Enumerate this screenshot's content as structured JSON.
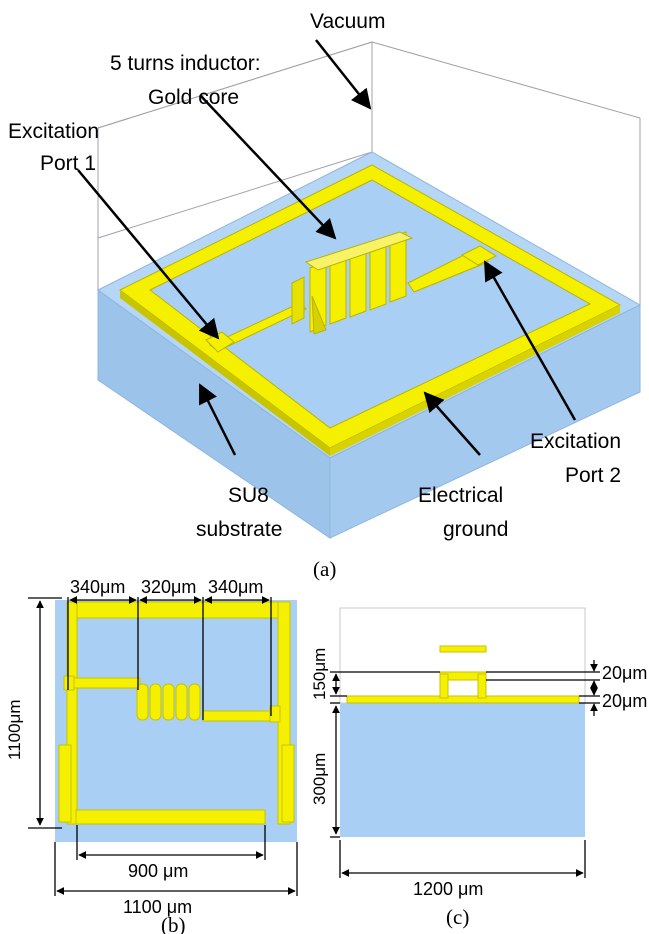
{
  "panel_a": {
    "labels": {
      "vacuum": "Vacuum",
      "inductor_line1": "5 turns inductor:",
      "inductor_line2": "Gold core",
      "port1_line1": "Excitation",
      "port1_line2": "Port 1",
      "port2_line1": "Excitation",
      "port2_line2": "Port 2",
      "substrate_line1": "SU8",
      "substrate_line2": "substrate",
      "ground_line1": "Electrical",
      "ground_line2": "ground"
    },
    "caption": "(a)"
  },
  "panel_b": {
    "dims": {
      "left_seg": "340μm",
      "mid_seg": "320μm",
      "right_seg": "340μm",
      "height": "1100μm",
      "inner_width": "900 μm",
      "outer_width": "1100 μm"
    },
    "caption": "(b)"
  },
  "panel_c": {
    "dims": {
      "top_thick": "20μm",
      "ground_thick": "20μm",
      "coil_height": "150μm",
      "substrate_height": "300μm",
      "width": "1200 μm"
    },
    "caption": "(c)"
  },
  "colors": {
    "substrate": "#a9cff5",
    "substrate_side": "#9cc3ea",
    "gold": "#f5f000",
    "gold_edge": "#b9b400",
    "outline": "#9a9aa8"
  }
}
